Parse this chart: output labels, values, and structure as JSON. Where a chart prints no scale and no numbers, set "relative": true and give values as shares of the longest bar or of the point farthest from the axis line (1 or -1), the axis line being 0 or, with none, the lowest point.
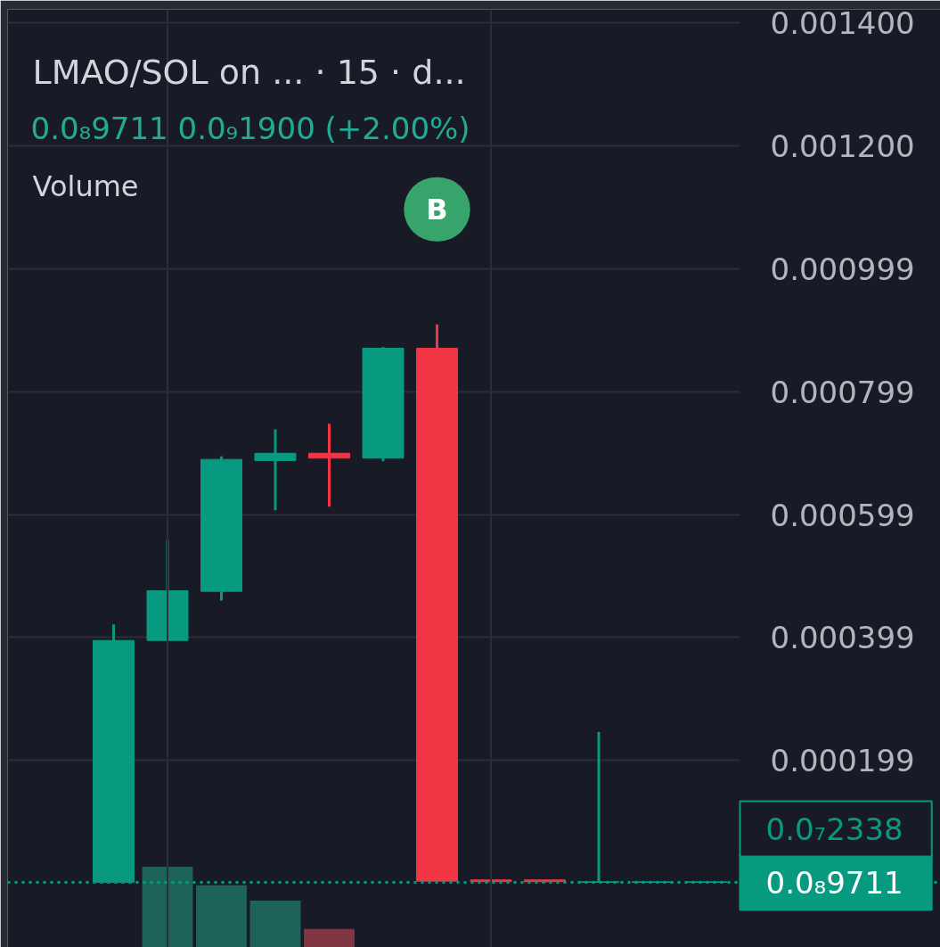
{
  "chart_data": [
    {
      "type": "candlestick",
      "title": "LMAO/SOL on ... · 15 · d...",
      "subtitle": "0.0₈9711 0.0₉1900 (+2.00%)",
      "categories": [
        null,
        null,
        null,
        null,
        null,
        null,
        null,
        null,
        null,
        null,
        null,
        null
      ],
      "ohlc": [
        [
          0,
          0.00042,
          0,
          0.000394
        ],
        [
          0.000394,
          0.000558,
          0.000394,
          0.000475
        ],
        [
          0.000474,
          0.000694,
          0.000459,
          0.000689
        ],
        [
          0.000687,
          0.000738,
          0.000606,
          0.000699
        ],
        [
          0.000699,
          0.000747,
          0.000612,
          0.000691
        ],
        [
          0.000691,
          0.000872,
          0.000686,
          0.00087
        ],
        [
          0.00087,
          0.000909,
          0,
          2e-06
        ],
        [
          4e-06,
          4e-06,
          0,
          1e-06
        ],
        [
          4e-06,
          4e-06,
          0,
          1e-06
        ],
        [
          0,
          0.000245,
          0,
          1e-06
        ],
        [
          0,
          1e-06,
          0,
          1e-06
        ],
        [
          0,
          1e-06,
          0,
          1e-06
        ]
      ],
      "colors": [
        "#089981",
        "#089981",
        "#089981",
        "#089981",
        "#f23645",
        "#089981",
        "#f23645",
        "#f23645",
        "#f23645",
        "#089981",
        "#089981",
        "#089981"
      ],
      "ylim": [
        -0.000106,
        0.001422
      ],
      "yticks": [
        {
          "value": 0.000199,
          "label": "0.000199"
        },
        {
          "value": 0.000399,
          "label": "0.000399"
        },
        {
          "value": 0.000599,
          "label": "0.000599"
        },
        {
          "value": 0.000799,
          "label": "0.000799"
        },
        {
          "value": 0.000999,
          "label": "0.000999"
        },
        {
          "value": 0.0012,
          "label": "0.001200"
        },
        {
          "value": 0.0014,
          "label": "0.001400"
        }
      ],
      "grid": "y",
      "tick_labels": "y",
      "ref_lines": [
        {
          "axis": "y",
          "value": 9.711e-09,
          "label": "0.0₈9711",
          "color": "#089981",
          "line_style": "dotted"
        }
      ],
      "annotations": [
        "B",
        "0.0₇2338"
      ]
    },
    {
      "type": "bar",
      "title": "Volume",
      "relative": true,
      "tick_labels": false,
      "categories": [
        null,
        null,
        null,
        null,
        null,
        null,
        null,
        null,
        null,
        null,
        null,
        null
      ],
      "values": [
        null,
        1,
        0.77,
        0.58,
        0.23,
        null,
        null,
        null,
        null,
        null,
        null,
        null
      ],
      "colors": [
        null,
        "#1e695d",
        "#1e695d",
        "#1e695d",
        "#8b3945",
        null,
        null,
        null,
        null,
        null,
        null,
        null
      ]
    }
  ]
}
